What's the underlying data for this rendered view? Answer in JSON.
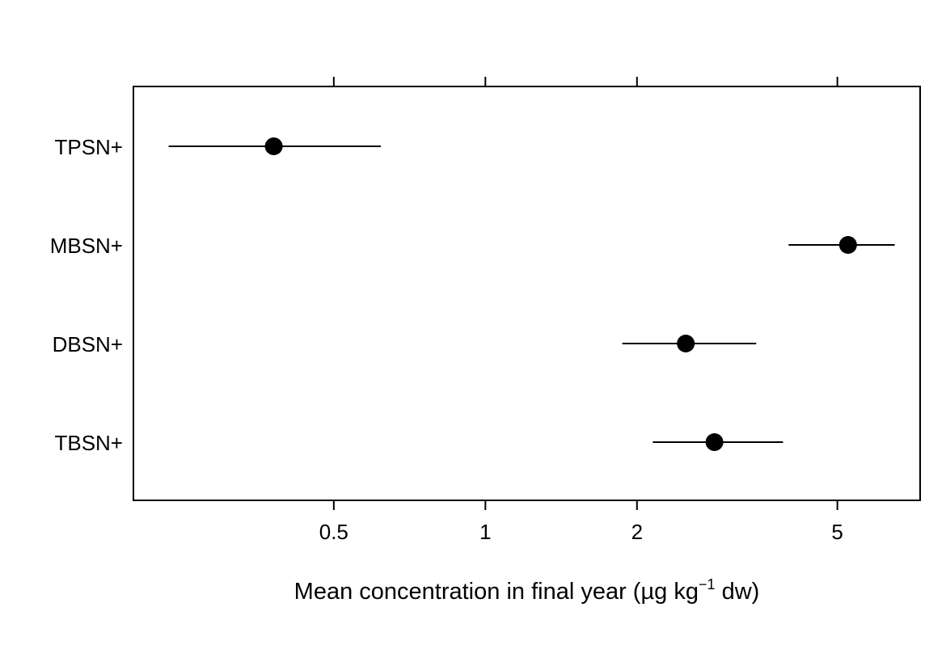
{
  "chart_data": {
    "type": "scatter",
    "subtype": "dot-plot-with-interval",
    "x_scale": "log",
    "xlim": [
      0.2,
      7.3
    ],
    "x_ticks": [
      {
        "value": 0.5,
        "label": "0.5"
      },
      {
        "value": 1,
        "label": "1"
      },
      {
        "value": 2,
        "label": "2"
      },
      {
        "value": 5,
        "label": "5"
      }
    ],
    "xlabel": {
      "prefix": "Mean concentration in final year (µg kg",
      "superscript": "−1",
      "suffix": " dw)"
    },
    "ylabel": "",
    "grid": false,
    "categories": [
      "TPSN+",
      "MBSN+",
      "DBSN+",
      "TBSN+"
    ],
    "points": [
      {
        "label": "TPSN+",
        "mean": 0.38,
        "lower": 0.235,
        "upper": 0.62
      },
      {
        "label": "MBSN+",
        "mean": 5.25,
        "lower": 4.0,
        "upper": 6.5
      },
      {
        "label": "DBSN+",
        "mean": 2.5,
        "lower": 1.87,
        "upper": 3.45
      },
      {
        "label": "TBSN+",
        "mean": 2.85,
        "lower": 2.15,
        "upper": 3.9
      }
    ],
    "colors": {
      "marker": "#000000",
      "line": "#000000",
      "axis": "#000000"
    }
  }
}
